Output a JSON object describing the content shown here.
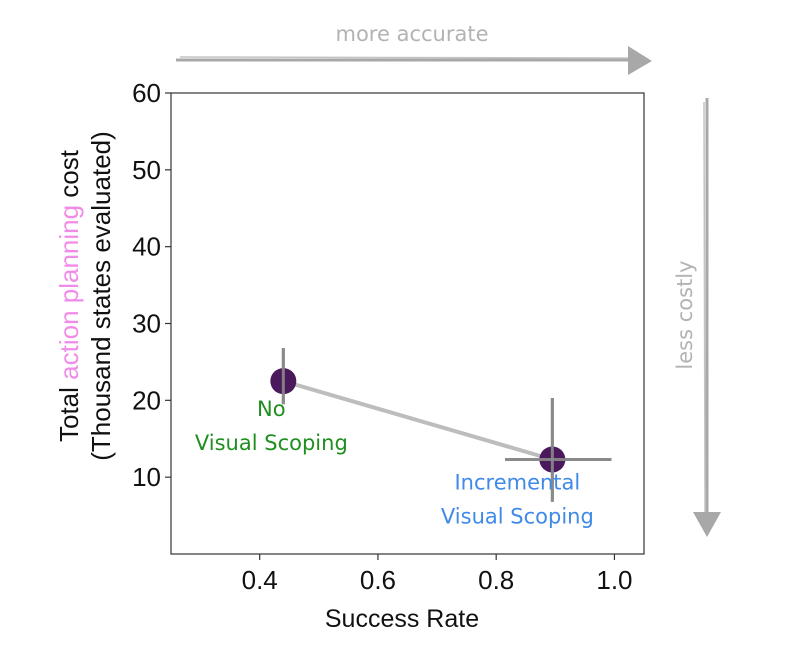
{
  "chart_data": {
    "type": "scatter",
    "title": "",
    "xlabel": "Success Rate",
    "ylabel_line1_parts": [
      "Total ",
      "action planning",
      " cost"
    ],
    "ylabel_line2": "(Thousand states evaluated)",
    "xlim": [
      0.25,
      1.05
    ],
    "ylim": [
      0,
      60
    ],
    "xticks": [
      0.4,
      0.6,
      0.8,
      1.0
    ],
    "xtick_labels": [
      "0.4",
      "0.6",
      "0.8",
      "1.0"
    ],
    "yticks": [
      10,
      20,
      30,
      40,
      50,
      60
    ],
    "ytick_labels": [
      "10",
      "20",
      "30",
      "40",
      "50",
      "60"
    ],
    "grid": false,
    "points": [
      {
        "name": "No Visual Scoping",
        "label_lines": [
          "No",
          "Visual Scoping"
        ],
        "x": 0.44,
        "y": 22.5,
        "x_err": [
          0.44,
          0.44
        ],
        "y_err": [
          19.5,
          26.8
        ],
        "label_color": "#1f8f1f"
      },
      {
        "name": "Incremental Visual Scoping",
        "label_lines": [
          "Incremental",
          "Visual Scoping"
        ],
        "x": 0.895,
        "y": 12.3,
        "x_err": [
          0.815,
          0.995
        ],
        "y_err": [
          6.8,
          20.3
        ],
        "label_color": "#3f8ae8"
      }
    ],
    "annotations": {
      "top_arrow": "more accurate",
      "right_arrow": "less costly"
    }
  },
  "colors": {
    "marker": "#4a1a5c",
    "errorbar": "#8a8a8a",
    "connector": "#bdbdbd",
    "highlight": "#f08ce8",
    "axis": "#333333",
    "arrow": "#a8a8a8"
  }
}
